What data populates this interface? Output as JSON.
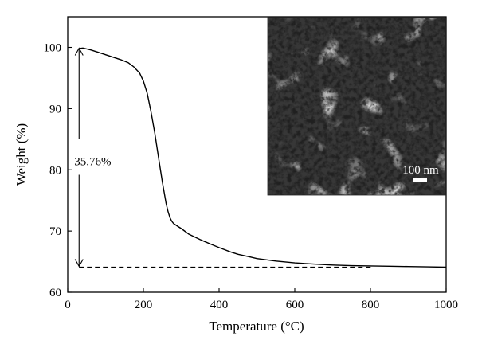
{
  "chart_data": {
    "type": "line",
    "title": "",
    "xlabel": "Temperature (°C)",
    "ylabel": "Weight (%)",
    "xlim": [
      0,
      1000
    ],
    "ylim": [
      60,
      105
    ],
    "xticks": [
      0,
      200,
      400,
      600,
      800,
      1000
    ],
    "yticks": [
      60,
      70,
      80,
      90,
      100
    ],
    "grid": false,
    "series": [
      {
        "x": [
          30,
          40,
          60,
          80,
          100,
          120,
          140,
          160,
          175,
          190,
          200,
          210,
          220,
          230,
          240,
          250,
          260,
          265,
          270,
          275,
          280,
          285,
          290,
          300,
          320,
          350,
          380,
          400,
          430,
          450,
          480,
          500,
          550,
          600,
          650,
          700,
          750,
          800,
          850,
          900,
          950,
          1000
        ],
        "y": [
          99.8,
          99.9,
          99.6,
          99.2,
          98.8,
          98.4,
          98.0,
          97.5,
          96.8,
          95.8,
          94.5,
          92.5,
          89.5,
          86,
          82,
          78,
          74.5,
          73.2,
          72.2,
          71.6,
          71.2,
          71.0,
          70.8,
          70.4,
          69.5,
          68.6,
          67.8,
          67.3,
          66.6,
          66.2,
          65.8,
          65.5,
          65.1,
          64.8,
          64.6,
          64.45,
          64.35,
          64.3,
          64.25,
          64.2,
          64.15,
          64.1
        ],
        "color": "#000000"
      }
    ],
    "reference_line": {
      "y": 64.1,
      "x_from": 30,
      "x_to": 810,
      "style": "dashed"
    },
    "annotation": {
      "text": "35.76%",
      "x": 30,
      "y_top": 100,
      "y_bottom": 64.1
    }
  },
  "inset": {
    "description_label": "SEM inset",
    "scale_bar_label": "100 nm"
  }
}
